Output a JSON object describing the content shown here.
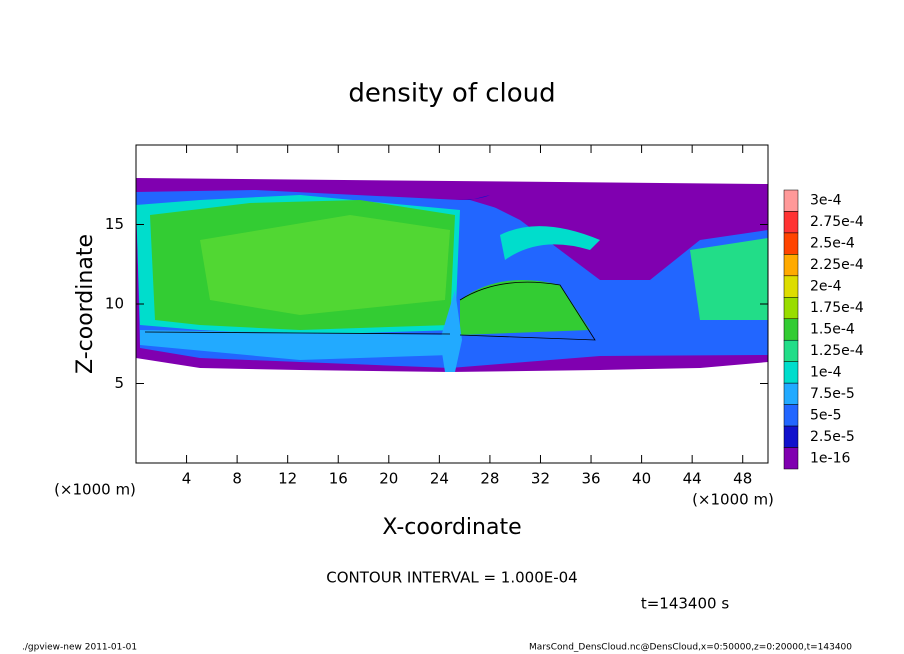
{
  "chart_data": {
    "type": "contour",
    "title": "density of cloud",
    "x_label": "X-coordinate",
    "y_label": "Z-coordinate",
    "x_unit": "(×1000 m)",
    "y_unit": "(×1000 m)",
    "xlim": [
      0,
      50
    ],
    "ylim": [
      0,
      20
    ],
    "xticks": [
      4,
      8,
      12,
      16,
      20,
      24,
      28,
      32,
      36,
      40,
      44,
      48
    ],
    "yticks": [
      5,
      10,
      15
    ],
    "levels": [
      {
        "value": 0.0003,
        "label": "3e-4",
        "color": "#ff9999"
      },
      {
        "value": 0.000275,
        "label": "2.75e-4",
        "color": "#ff3333"
      },
      {
        "value": 0.00025,
        "label": "2.5e-4",
        "color": "#ff4400"
      },
      {
        "value": 0.000225,
        "label": "2.25e-4",
        "color": "#ffaa00"
      },
      {
        "value": 0.0002,
        "label": "2e-4",
        "color": "#dddd00"
      },
      {
        "value": 0.000175,
        "label": "1.75e-4",
        "color": "#99dd00"
      },
      {
        "value": 0.00015,
        "label": "1.5e-4",
        "color": "#33cc33"
      },
      {
        "value": 0.000125,
        "label": "1.25e-4",
        "color": "#22dd88"
      },
      {
        "value": 0.0001,
        "label": "1e-4",
        "color": "#00ddcc"
      },
      {
        "value": 7.5e-05,
        "label": "7.5e-5",
        "color": "#22aaff"
      },
      {
        "value": 5e-05,
        "label": "5e-5",
        "color": "#2266ff"
      },
      {
        "value": 2.5e-05,
        "label": "2.5e-5",
        "color": "#1111cc"
      },
      {
        "value": 1e-16,
        "label": "1e-16",
        "color": "#8000b0"
      }
    ],
    "contour_interval": "CONTOUR INTERVAL = 1.000E-04",
    "time_label": "t=143400 s",
    "footer_left": "./gpview-new   2011-01-01",
    "footer_right": "MarsCond_DensCloud.nc@DensCloud,x=0:50000,z=0:20000,t=143400"
  }
}
